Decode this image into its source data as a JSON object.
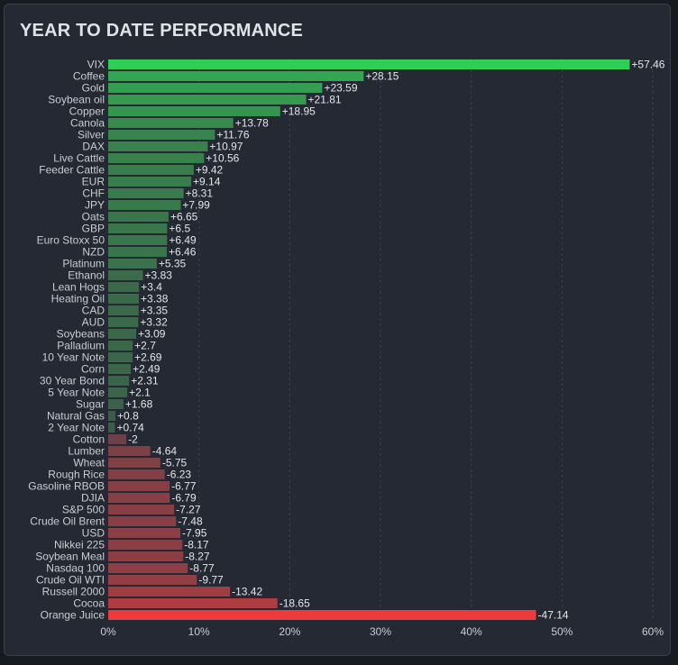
{
  "title": "YEAR TO DATE PERFORMANCE",
  "colors": {
    "background": "#252933",
    "border": "#3a3f4b",
    "text": "#c9ccd3",
    "positive_strong": "#2fcf57",
    "positive_muted": "#3d4f47",
    "negative_muted": "#4f414b",
    "negative_strong": "#ee3a3a",
    "grid": "#3a4050"
  },
  "chart_data": {
    "type": "bar",
    "orientation": "horizontal",
    "title": "YEAR TO DATE PERFORMANCE",
    "xlim": [
      0,
      60
    ],
    "xticks": [
      0,
      10,
      20,
      30,
      40,
      50,
      60
    ],
    "xtick_labels": [
      "0%",
      "10%",
      "20%",
      "30%",
      "40%",
      "50%",
      "60%"
    ],
    "grid": "vertical dashed",
    "bar_length": "absolute value",
    "categories": [
      "VIX",
      "Coffee",
      "Gold",
      "Soybean oil",
      "Copper",
      "Canola",
      "Silver",
      "DAX",
      "Live Cattle",
      "Feeder Cattle",
      "EUR",
      "CHF",
      "JPY",
      "Oats",
      "GBP",
      "Euro Stoxx 50",
      "NZD",
      "Platinum",
      "Ethanol",
      "Lean Hogs",
      "Heating Oil",
      "CAD",
      "AUD",
      "Soybeans",
      "Palladium",
      "10 Year Note",
      "Corn",
      "30 Year Bond",
      "5 Year Note",
      "Sugar",
      "Natural Gas",
      "2 Year Note",
      "Cotton",
      "Lumber",
      "Wheat",
      "Rough Rice",
      "Gasoline RBOB",
      "DJIA",
      "S&P 500",
      "Crude Oil Brent",
      "USD",
      "Nikkei 225",
      "Soybean Meal",
      "Nasdaq 100",
      "Crude Oil WTI",
      "Russell 2000",
      "Cocoa",
      "Orange Juice"
    ],
    "values": [
      57.46,
      28.15,
      23.59,
      21.81,
      18.95,
      13.78,
      11.76,
      10.97,
      10.56,
      9.42,
      9.14,
      8.31,
      7.99,
      6.65,
      6.5,
      6.49,
      6.46,
      5.35,
      3.83,
      3.4,
      3.38,
      3.35,
      3.32,
      3.09,
      2.7,
      2.69,
      2.49,
      2.31,
      2.1,
      1.68,
      0.8,
      0.74,
      -2,
      -4.64,
      -5.75,
      -6.23,
      -6.77,
      -6.79,
      -7.27,
      -7.48,
      -7.95,
      -8.17,
      -8.27,
      -8.77,
      -9.77,
      -13.42,
      -18.65,
      -47.14
    ],
    "value_labels": [
      "+57.46",
      "+28.15",
      "+23.59",
      "+21.81",
      "+18.95",
      "+13.78",
      "+11.76",
      "+10.97",
      "+10.56",
      "+9.42",
      "+9.14",
      "+8.31",
      "+7.99",
      "+6.65",
      "+6.5",
      "+6.49",
      "+6.46",
      "+5.35",
      "+3.83",
      "+3.4",
      "+3.38",
      "+3.35",
      "+3.32",
      "+3.09",
      "+2.7",
      "+2.69",
      "+2.49",
      "+2.31",
      "+2.1",
      "+1.68",
      "+0.8",
      "+0.74",
      "-2",
      "-4.64",
      "-5.75",
      "-6.23",
      "-6.77",
      "-6.79",
      "-7.27",
      "-7.48",
      "-7.95",
      "-8.17",
      "-8.27",
      "-8.77",
      "-9.77",
      "-13.42",
      "-18.65",
      "-47.14"
    ]
  }
}
